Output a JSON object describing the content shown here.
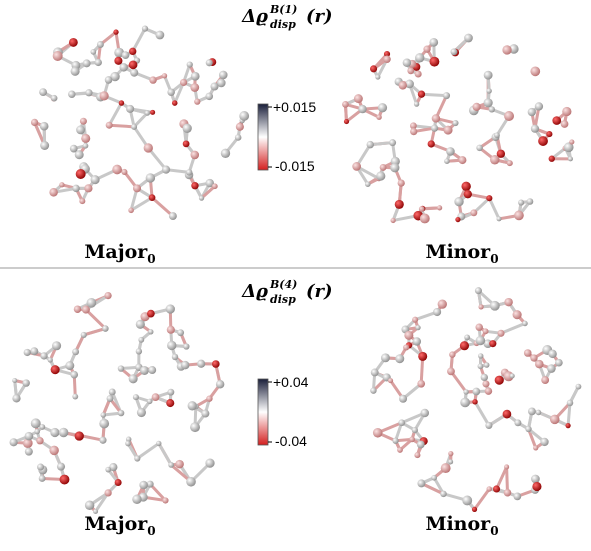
{
  "panels": [
    {
      "title": {
        "symbol": "Δϱ",
        "superscript": "B(1)",
        "subscript": "disp",
        "argument": "(r)"
      },
      "colorbar": {
        "max": "+0.015",
        "min": "-0.015"
      },
      "structures": [
        {
          "name": "Major",
          "subscript": "0"
        },
        {
          "name": "Minor",
          "subscript": "0"
        }
      ]
    },
    {
      "title": {
        "symbol": "Δϱ",
        "superscript": "B(4)",
        "subscript": "disp",
        "argument": "(r)"
      },
      "colorbar": {
        "max": "+0.04",
        "min": "-0.04"
      },
      "structures": [
        {
          "name": "Major",
          "subscript": "0"
        },
        {
          "name": "Minor",
          "subscript": "0"
        }
      ]
    }
  ]
}
